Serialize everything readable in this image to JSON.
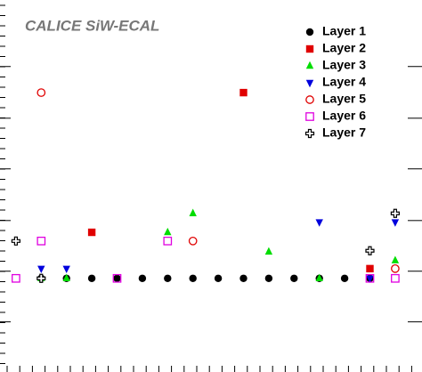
{
  "chart_data": {
    "type": "scatter",
    "title": "CALICE SiW-ECAL",
    "x": [
      1,
      2,
      3,
      4,
      5,
      6,
      7,
      8,
      9,
      10,
      11,
      12,
      13,
      14,
      15,
      16
    ],
    "xlim": [
      0.37,
      17.06
    ],
    "ylim": [
      -1.83,
      5.44
    ],
    "yticks": [
      4.14,
      3.13,
      2.14,
      1.13,
      0.14,
      -0.85
    ],
    "series": [
      {
        "name": "Layer 1",
        "color": "#000000",
        "marker": "dot",
        "values": [
          null,
          0,
          0,
          0,
          0,
          0,
          0,
          0,
          0,
          0,
          0,
          0,
          0,
          0,
          0,
          null
        ]
      },
      {
        "name": "Layer 2",
        "color": "#e00000",
        "marker": "square",
        "values": [
          null,
          null,
          null,
          0.9,
          null,
          null,
          null,
          null,
          null,
          3.63,
          null,
          null,
          null,
          null,
          0.19,
          null
        ]
      },
      {
        "name": "Layer 3",
        "color": "#00dd00",
        "marker": "triangle",
        "values": [
          null,
          0,
          0,
          null,
          null,
          null,
          0.9,
          1.27,
          null,
          null,
          0.52,
          null,
          0,
          null,
          null,
          0.35
        ]
      },
      {
        "name": "Layer 4",
        "color": "#0000dd",
        "marker": "triangle-down",
        "values": [
          null,
          0.19,
          0.19,
          null,
          null,
          null,
          null,
          null,
          null,
          null,
          null,
          null,
          1.1,
          null,
          0,
          1.1
        ]
      },
      {
        "name": "Layer 5",
        "color": "#e00000",
        "marker": "circle",
        "values": [
          null,
          3.63,
          null,
          null,
          null,
          null,
          null,
          0.73,
          null,
          null,
          null,
          null,
          null,
          null,
          null,
          0.19
        ]
      },
      {
        "name": "Layer 6",
        "color": "#e000e0",
        "marker": "open-square",
        "values": [
          0,
          0.73,
          null,
          null,
          0,
          null,
          0.73,
          null,
          null,
          null,
          null,
          null,
          null,
          null,
          0,
          0
        ]
      },
      {
        "name": "Layer 7",
        "color": "#000000",
        "marker": "cross",
        "values": [
          0.73,
          0,
          null,
          null,
          null,
          null,
          null,
          null,
          null,
          null,
          null,
          null,
          null,
          null,
          0.54,
          1.27
        ]
      }
    ]
  }
}
